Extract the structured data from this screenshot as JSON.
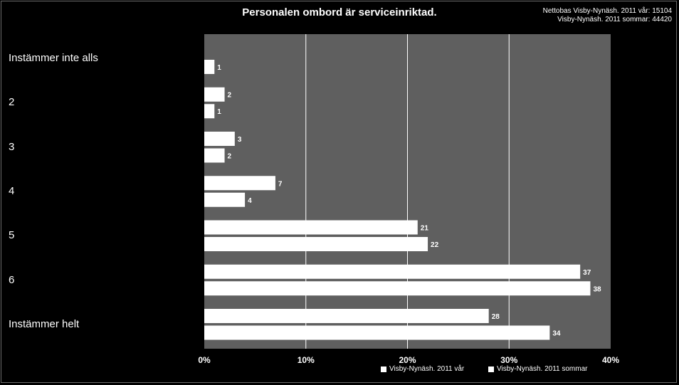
{
  "chart_data": {
    "type": "bar",
    "orientation": "horizontal",
    "title": "Personalen ombord är serviceinriktad.",
    "note_lines": [
      "Nettobas  Visby-Nynäsh. 2011 vår: 15104",
      "Visby-Nynäsh. 2011 sommar: 44420"
    ],
    "categories": [
      "Instämmer inte alls",
      "2",
      "3",
      "4",
      "5",
      "6",
      "Instämmer helt"
    ],
    "series": [
      {
        "name": "Visby-Nynäsh. 2011 vår",
        "values": [
          null,
          2,
          3,
          7,
          21,
          37,
          28
        ]
      },
      {
        "name": "Visby-Nynäsh. 2011 sommar",
        "values": [
          1,
          1,
          2,
          4,
          22,
          38,
          34
        ]
      }
    ],
    "x_ticks": [
      "0%",
      "10%",
      "20%",
      "30%",
      "40%"
    ],
    "xlim": [
      0,
      40
    ],
    "grid": true,
    "legend_position": "bottom-right",
    "colors": {
      "background": "#000000",
      "plot_area": "#5f5f5f",
      "bars": "#ffffff",
      "text": "#ffffff",
      "gridlines": "#ffffff"
    }
  }
}
